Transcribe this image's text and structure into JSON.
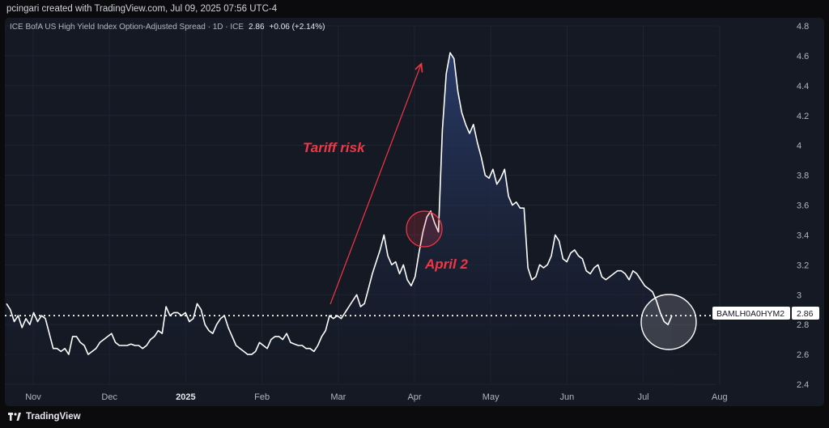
{
  "header": {
    "creator_line": "pcingari created with TradingView.com, Jul 09, 2025 07:56 UTC-4"
  },
  "legend": {
    "title": "ICE BofA US High Yield Index Option-Adjusted Spread · 1D · ICE",
    "value": "2.86",
    "change": "+0.06 (+2.14%)"
  },
  "footer": {
    "brand": "TradingView"
  },
  "colors": {
    "background": "#151924",
    "line": "#ffffff",
    "area_top": "#2a3d6e",
    "annotation": "#f23645",
    "grid": "#1f2433"
  },
  "chart_data": {
    "type": "area",
    "title": "",
    "xlabel": "",
    "ylabel": "",
    "ylim": [
      2.4,
      4.8
    ],
    "yticks": [
      "4.8",
      "4.6",
      "4.4",
      "4.2",
      "4",
      "3.8",
      "3.6",
      "3.4",
      "3.2",
      "3",
      "2.8",
      "2.6",
      "2.4"
    ],
    "xticks": [
      "Nov",
      "Dec",
      "2025",
      "Feb",
      "Mar",
      "Apr",
      "May",
      "Jun",
      "Jul",
      "Aug"
    ],
    "bold_xticks": [
      "2025"
    ],
    "grid": true,
    "series": [
      {
        "values": [
          2.94,
          2.9,
          2.82,
          2.86,
          2.78,
          2.84,
          2.8,
          2.88,
          2.82,
          2.86,
          2.84,
          2.74,
          2.64,
          2.64,
          2.62,
          2.64,
          2.6,
          2.72,
          2.72,
          2.68,
          2.66,
          2.6,
          2.62,
          2.64,
          2.68,
          2.7,
          2.72,
          2.74,
          2.68,
          2.66,
          2.66,
          2.66,
          2.67,
          2.66,
          2.66,
          2.64,
          2.66,
          2.7,
          2.72,
          2.76,
          2.74,
          2.92,
          2.86,
          2.88,
          2.88,
          2.86,
          2.88,
          2.82,
          2.84,
          2.94,
          2.9,
          2.8,
          2.76,
          2.74,
          2.8,
          2.84,
          2.86,
          2.78,
          2.72,
          2.66,
          2.64,
          2.62,
          2.6,
          2.6,
          2.62,
          2.68,
          2.66,
          2.64,
          2.7,
          2.72,
          2.72,
          2.7,
          2.74,
          2.68,
          2.67,
          2.66,
          2.66,
          2.64,
          2.64,
          2.62,
          2.66,
          2.72,
          2.76,
          2.86,
          2.84,
          2.86,
          2.84,
          2.88,
          2.92,
          2.96,
          3.0,
          2.92,
          2.94,
          3.04,
          3.14,
          3.22,
          3.3,
          3.4,
          3.26,
          3.2,
          3.22,
          3.14,
          3.2,
          3.1,
          3.06,
          3.12,
          3.28,
          3.42,
          3.52,
          3.56,
          3.48,
          3.42,
          4.1,
          4.48,
          4.62,
          4.58,
          4.36,
          4.22,
          4.14,
          4.08,
          4.14,
          4.02,
          3.92,
          3.8,
          3.78,
          3.84,
          3.74,
          3.78,
          3.84,
          3.66,
          3.6,
          3.62,
          3.58,
          3.58,
          3.18,
          3.1,
          3.12,
          3.2,
          3.18,
          3.2,
          3.26,
          3.4,
          3.36,
          3.24,
          3.22,
          3.28,
          3.3,
          3.26,
          3.24,
          3.16,
          3.14,
          3.18,
          3.2,
          3.12,
          3.1,
          3.12,
          3.14,
          3.16,
          3.16,
          3.14,
          3.1,
          3.16,
          3.14,
          3.1,
          3.06,
          3.04,
          3.02,
          2.96,
          2.88,
          2.82,
          2.8,
          2.86
        ]
      }
    ],
    "reference_line": {
      "value": 2.86,
      "label": "BAMLH0A0HYM2",
      "value_label": "2.86"
    },
    "annotations": [
      {
        "text": "Tariff risk",
        "kind": "arrow"
      },
      {
        "text": "April 2",
        "kind": "circle"
      }
    ]
  }
}
